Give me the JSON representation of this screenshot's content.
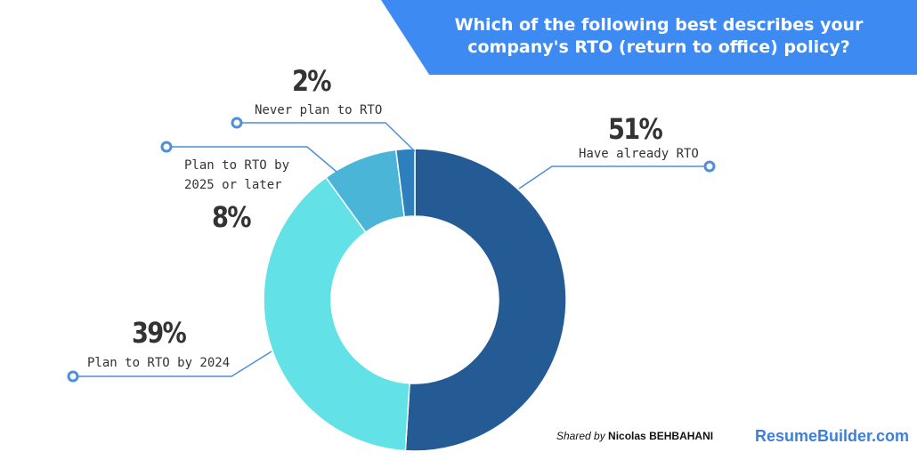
{
  "title": "Which of the following best describes your company's RTO (return to office) policy?",
  "chart_data": {
    "type": "pie",
    "donut": true,
    "slices": [
      {
        "label": "Have already RTO",
        "value": 51,
        "display": "51%",
        "color": "#245b94"
      },
      {
        "label": "Plan to RTO by 2024",
        "value": 39,
        "display": "39%",
        "color": "#62e1e6"
      },
      {
        "label": "Plan to RTO by 2025 or later",
        "value": 8,
        "display": "8%",
        "color": "#4ab5d6"
      },
      {
        "label": "Never plan to RTO",
        "value": 2,
        "display": "2%",
        "color": "#2e7fbe"
      }
    ]
  },
  "labels": {
    "have_already_pct": "51%",
    "have_already": "Have already RTO",
    "plan_2024_pct": "39%",
    "plan_2024": "Plan to RTO by 2024",
    "plan_2025_pct": "8%",
    "plan_2025_line1": "Plan to RTO by",
    "plan_2025_line2": "2025 or later",
    "never_pct": "2%",
    "never": "Never plan to RTO"
  },
  "footer": {
    "shared_prefix": "Shared by",
    "shared_name": "Nicolas BEHBAHANI",
    "brand": "ResumeBuilder.com"
  },
  "colors": {
    "accent": "#3d8bf2",
    "leader": "#4d8fd8"
  }
}
